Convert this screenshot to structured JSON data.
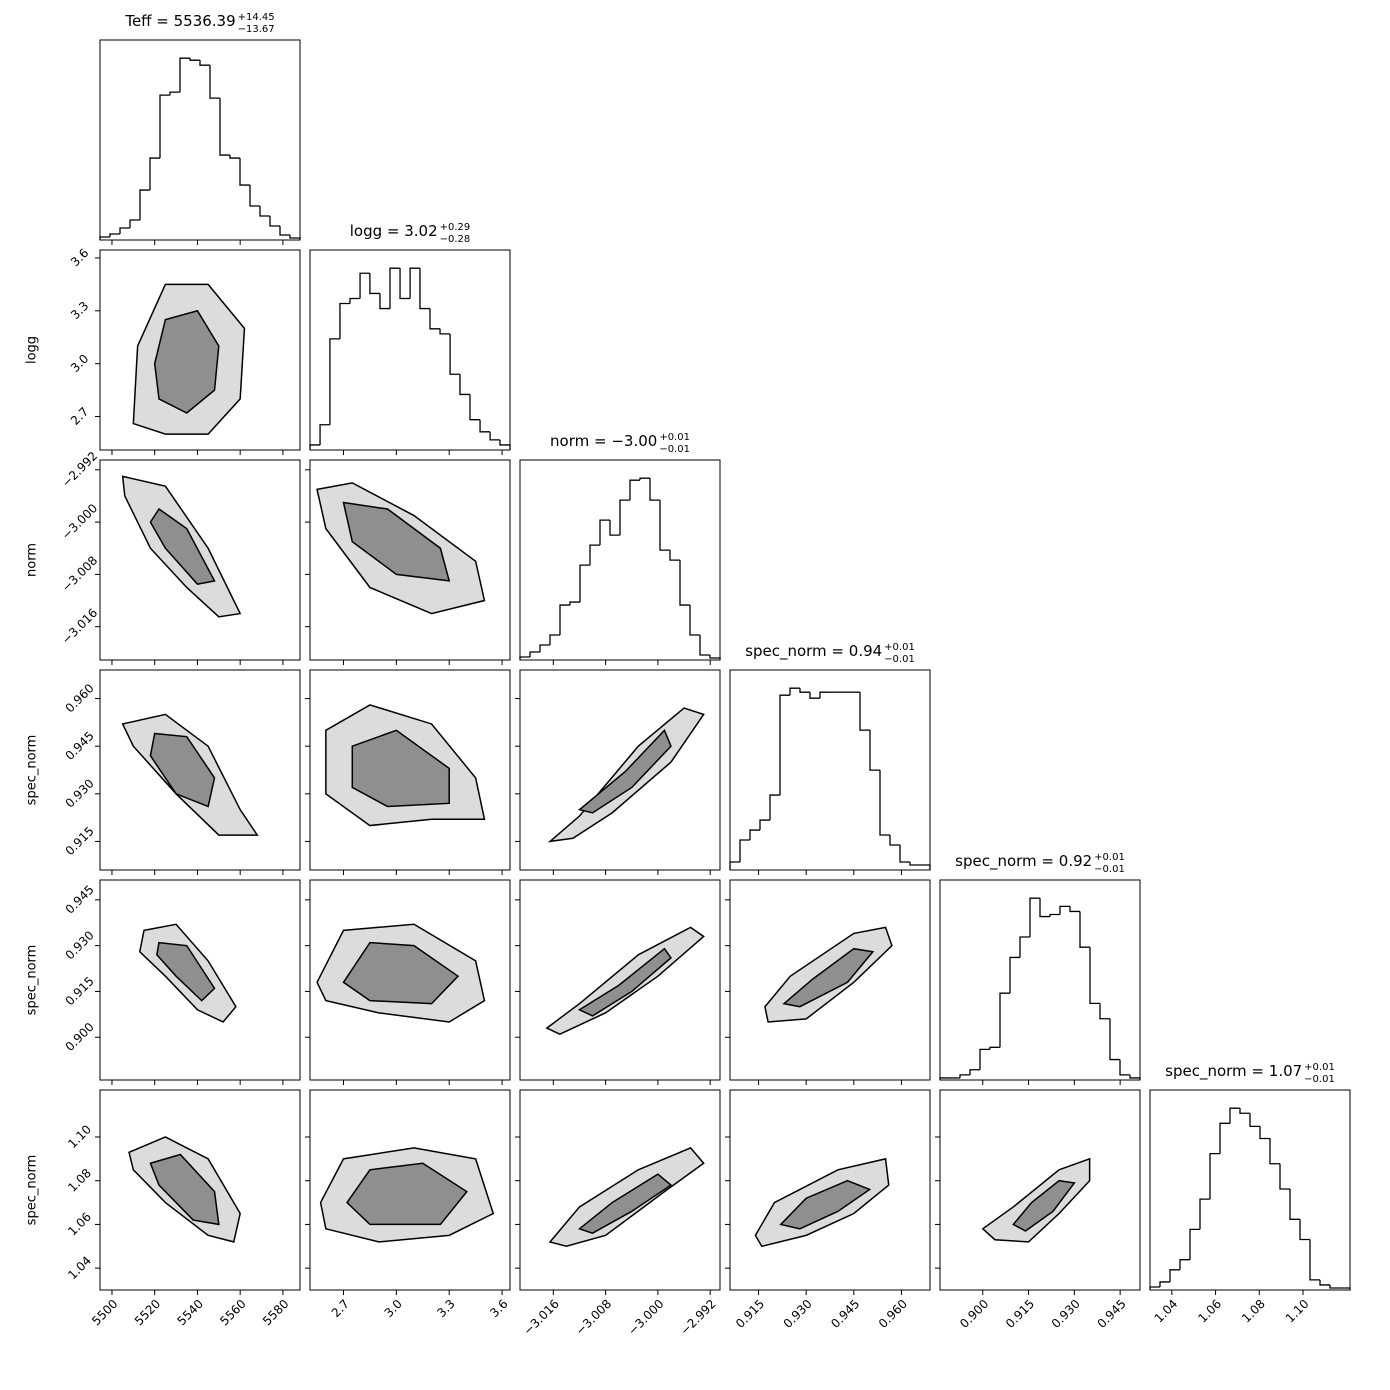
{
  "chart_data": {
    "type": "corner",
    "parameters": [
      {
        "label": "Teff",
        "title": "Teff = 5536.39",
        "upper": "+14.45",
        "lower": "−13.67",
        "lim": [
          5494.4,
          5588
        ],
        "ticks": [
          5500,
          5520,
          5540,
          5560,
          5580
        ],
        "bins": [
          5494.4,
          5499.08,
          5503.76,
          5508.44,
          5513.12,
          5517.8,
          5522.48,
          5527.16,
          5531.84,
          5536.52,
          5541.2,
          5545.88,
          5550.56,
          5555.24,
          5559.92,
          5564.6,
          5569.28,
          5573.96,
          5578.64,
          5583.32,
          5588.0
        ],
        "counts": [
          3,
          6,
          12,
          20,
          50,
          82,
          145,
          148,
          182,
          180,
          175,
          142,
          85,
          82,
          55,
          34,
          24,
          14,
          5,
          2
        ],
        "joint": []
      },
      {
        "label": "logg",
        "title": "logg = 3.02",
        "upper": "+0.29",
        "lower": "−0.28",
        "lim": [
          2.51,
          3.645
        ],
        "ticks": [
          2.7,
          {
            "value": 3.0,
            "label": "3.0"
          },
          3.3,
          3.6
        ],
        "bins": [
          2.51,
          2.567,
          2.623,
          2.68,
          2.737,
          2.794,
          2.85,
          2.907,
          2.964,
          3.021,
          3.078,
          3.134,
          3.191,
          3.248,
          3.305,
          3.361,
          3.418,
          3.475,
          3.532,
          3.588,
          3.645
        ],
        "counts": [
          5,
          25,
          110,
          145,
          150,
          175,
          155,
          140,
          180,
          150,
          180,
          140,
          120,
          115,
          75,
          55,
          30,
          18,
          10,
          5
        ],
        "joint": [
          [
            {
              "x": [
                5510,
                5525,
                5545,
                5560,
                5562,
                5545,
                5525,
                5512
              ],
              "y": [
                2.66,
                2.6,
                2.6,
                2.8,
                3.2,
                3.45,
                3.45,
                3.1
              ]
            },
            {
              "x": [
                5522,
                5535,
                5548,
                5550,
                5540,
                5525,
                5520
              ],
              "y": [
                2.8,
                2.72,
                2.85,
                3.1,
                3.3,
                3.25,
                3.0
              ]
            }
          ]
        ]
      },
      {
        "label": "norm",
        "title": "norm = −3.00",
        "upper": "+0.01",
        "lower": "−0.01",
        "lim": [
          -3.0211,
          -2.9905
        ],
        "ticks": [
          {
            "value": -3.016,
            "label": "−3.016"
          },
          {
            "value": -3.008,
            "label": "−3.008"
          },
          {
            "value": -3.0,
            "label": "−3.000"
          },
          {
            "value": -2.992,
            "label": "−2.992"
          }
        ],
        "bins": [
          -3.0211,
          -3.01957,
          -3.01804,
          -3.01651,
          -3.01498,
          -3.01345,
          -3.01192,
          -3.01039,
          -3.00886,
          -3.00733,
          -3.0058,
          -3.00427,
          -3.00274,
          -3.00121,
          -2.99968,
          -2.99815,
          -2.99662,
          -2.99509,
          -2.99356,
          -2.99203,
          -2.9905
        ],
        "counts": [
          3,
          8,
          15,
          25,
          55,
          58,
          95,
          115,
          140,
          125,
          160,
          180,
          182,
          160,
          110,
          100,
          55,
          25,
          5,
          2
        ],
        "joint": [
          [
            {
              "x": [
                5505,
                5525,
                5545,
                5560,
                5550,
                5535,
                5518,
                5506
              ],
              "y": [
                -2.993,
                -2.9945,
                -3.004,
                -3.014,
                -3.0145,
                -3.01,
                -3.004,
                -2.996
              ]
            },
            {
              "x": [
                5522,
                5535,
                5548,
                5540,
                5525,
                5518
              ],
              "y": [
                -2.998,
                -3.001,
                -3.009,
                -3.0095,
                -3.004,
                -3.0
              ]
            }
          ],
          [
            {
              "x": [
                2.55,
                2.75,
                3.1,
                3.45,
                3.5,
                3.2,
                2.85,
                2.6
              ],
              "y": [
                -2.995,
                -2.994,
                -2.999,
                -3.006,
                -3.012,
                -3.014,
                -3.01,
                -3.001
              ]
            },
            {
              "x": [
                2.7,
                2.95,
                3.25,
                3.3,
                3.0,
                2.75
              ],
              "y": [
                -2.997,
                -2.998,
                -3.004,
                -3.009,
                -3.008,
                -3.003
              ]
            }
          ]
        ]
      },
      {
        "label": "spec_norm",
        "title": "spec_norm = 0.94",
        "upper": "+0.01",
        "lower": "−0.01",
        "lim": [
          0.906,
          0.969
        ],
        "ticks": [
          0.915,
          {
            "value": 0.93,
            "label": "0.930"
          },
          0.945,
          {
            "value": 0.96,
            "label": "0.960"
          }
        ],
        "bins": [
          0.906,
          0.90915,
          0.9123,
          0.91545,
          0.9186,
          0.92175,
          0.9249,
          0.92805,
          0.9312,
          0.93435,
          0.9375,
          0.94065,
          0.9438,
          0.94695,
          0.9501,
          0.95325,
          0.9564,
          0.95955,
          0.9627,
          0.96585,
          0.969
        ],
        "counts": [
          8,
          30,
          40,
          50,
          75,
          175,
          182,
          178,
          172,
          178,
          178,
          178,
          178,
          140,
          100,
          35,
          25,
          8,
          5,
          5
        ],
        "joint": [
          [
            {
              "x": [
                5505,
                5525,
                5545,
                5560,
                5568,
                5550,
                5530,
                5510
              ],
              "y": [
                0.952,
                0.955,
                0.945,
                0.925,
                0.917,
                0.917,
                0.93,
                0.945
              ]
            },
            {
              "x": [
                5520,
                5535,
                5548,
                5545,
                5530,
                5518
              ],
              "y": [
                0.949,
                0.948,
                0.935,
                0.926,
                0.93,
                0.942
              ]
            }
          ],
          [
            {
              "x": [
                2.6,
                2.85,
                3.2,
                3.45,
                3.5,
                3.2,
                2.85,
                2.6
              ],
              "y": [
                0.95,
                0.958,
                0.952,
                0.935,
                0.922,
                0.922,
                0.92,
                0.93
              ]
            },
            {
              "x": [
                2.75,
                3.0,
                3.3,
                3.3,
                2.95,
                2.75
              ],
              "y": [
                0.945,
                0.95,
                0.938,
                0.927,
                0.926,
                0.932
              ]
            }
          ],
          [
            {
              "x": [
                -3.0165,
                -3.012,
                -3.003,
                -2.996,
                -2.993,
                -2.998,
                -3.007,
                -3.013
              ],
              "y": [
                0.915,
                0.923,
                0.945,
                0.957,
                0.955,
                0.94,
                0.924,
                0.916
              ]
            },
            {
              "x": [
                -3.012,
                -3.005,
                -2.999,
                -2.998,
                -3.004,
                -3.01
              ],
              "y": [
                0.925,
                0.937,
                0.95,
                0.945,
                0.932,
                0.924
              ]
            }
          ]
        ]
      },
      {
        "label": "spec_norm",
        "title": "spec_norm = 0.92",
        "upper": "+0.01",
        "lower": "−0.01",
        "lim": [
          0.886,
          0.9515
        ],
        "ticks": [
          {
            "value": 0.9,
            "label": "0.900"
          },
          0.915,
          {
            "value": 0.93,
            "label": "0.930"
          },
          0.945
        ],
        "bins": [
          0.886,
          0.889275,
          0.89255,
          0.895825,
          0.8991,
          0.902375,
          0.90565,
          0.908925,
          0.9122,
          0.915475,
          0.91875,
          0.922025,
          0.9253,
          0.928575,
          0.93185,
          0.935125,
          0.9384,
          0.941675,
          0.94495,
          0.948225,
          0.9515
        ],
        "counts": [
          2,
          2,
          5,
          10,
          30,
          32,
          85,
          120,
          140,
          178,
          160,
          162,
          170,
          165,
          130,
          75,
          60,
          20,
          5,
          2
        ],
        "joint": [
          [
            {
              "x": [
                5515,
                5530,
                5545,
                5558,
                5552,
                5540,
                5525,
                5513
              ],
              "y": [
                0.935,
                0.937,
                0.925,
                0.91,
                0.905,
                0.909,
                0.92,
                0.928
              ]
            },
            {
              "x": [
                5522,
                5535,
                5548,
                5542,
                5530,
                5521
              ],
              "y": [
                0.931,
                0.93,
                0.916,
                0.912,
                0.92,
                0.927
              ]
            }
          ],
          [
            {
              "x": [
                2.55,
                2.7,
                3.1,
                3.45,
                3.5,
                3.3,
                2.9,
                2.6
              ],
              "y": [
                0.918,
                0.935,
                0.937,
                0.925,
                0.912,
                0.905,
                0.908,
                0.912
              ]
            },
            {
              "x": [
                2.7,
                2.85,
                3.1,
                3.35,
                3.2,
                2.85
              ],
              "y": [
                0.918,
                0.931,
                0.93,
                0.92,
                0.911,
                0.912
              ]
            }
          ],
          [
            {
              "x": [
                -3.017,
                -3.012,
                -3.003,
                -2.995,
                -2.993,
                -3.0,
                -3.008,
                -3.015
              ],
              "y": [
                0.903,
                0.911,
                0.927,
                0.936,
                0.933,
                0.92,
                0.908,
                0.901
              ]
            },
            {
              "x": [
                -3.012,
                -3.006,
                -2.999,
                -2.998,
                -3.004,
                -3.01
              ],
              "y": [
                0.909,
                0.917,
                0.929,
                0.926,
                0.915,
                0.907
              ]
            }
          ],
          [
            {
              "x": [
                0.917,
                0.925,
                0.945,
                0.955,
                0.957,
                0.945,
                0.93,
                0.918
              ],
              "y": [
                0.91,
                0.92,
                0.934,
                0.936,
                0.93,
                0.918,
                0.906,
                0.905
              ]
            },
            {
              "x": [
                0.923,
                0.932,
                0.945,
                0.951,
                0.943,
                0.928
              ],
              "y": [
                0.911,
                0.919,
                0.929,
                0.928,
                0.918,
                0.91
              ]
            }
          ]
        ]
      },
      {
        "label": "spec_norm",
        "title": "spec_norm = 1.07",
        "upper": "+0.01",
        "lower": "−0.01",
        "lim": [
          1.03,
          1.1215
        ],
        "ticks": [
          1.04,
          1.06,
          1.08,
          {
            "value": 1.1,
            "label": "1.10"
          }
        ],
        "bins": [
          1.03,
          1.034575,
          1.03915,
          1.043725,
          1.0483,
          1.052875,
          1.05745,
          1.062025,
          1.0666,
          1.071175,
          1.07575,
          1.080325,
          1.0849,
          1.089475,
          1.09405,
          1.098625,
          1.1032,
          1.107775,
          1.11235,
          1.116925,
          1.1215
        ],
        "counts": [
          3,
          8,
          20,
          30,
          60,
          90,
          135,
          165,
          180,
          175,
          162,
          150,
          125,
          100,
          70,
          50,
          10,
          5,
          2,
          2
        ],
        "joint": [
          [
            {
              "x": [
                5508,
                5525,
                5545,
                5560,
                5557,
                5545,
                5525,
                5510
              ],
              "y": [
                1.093,
                1.1,
                1.09,
                1.065,
                1.052,
                1.055,
                1.07,
                1.085
              ]
            },
            {
              "x": [
                5518,
                5532,
                5548,
                5550,
                5538,
                5522
              ],
              "y": [
                1.088,
                1.092,
                1.075,
                1.06,
                1.062,
                1.078
              ]
            }
          ],
          [
            {
              "x": [
                2.57,
                2.7,
                3.1,
                3.45,
                3.55,
                3.3,
                2.9,
                2.6
              ],
              "y": [
                1.07,
                1.09,
                1.095,
                1.09,
                1.065,
                1.055,
                1.052,
                1.058
              ]
            },
            {
              "x": [
                2.72,
                2.85,
                3.15,
                3.4,
                3.25,
                2.85
              ],
              "y": [
                1.07,
                1.085,
                1.088,
                1.075,
                1.06,
                1.06
              ]
            }
          ],
          [
            {
              "x": [
                -3.0165,
                -3.012,
                -3.003,
                -2.995,
                -2.993,
                -2.999,
                -3.008,
                -3.014
              ],
              "y": [
                1.052,
                1.068,
                1.085,
                1.095,
                1.088,
                1.075,
                1.055,
                1.05
              ]
            },
            {
              "x": [
                -3.012,
                -3.007,
                -3.0,
                -2.998,
                -3.004,
                -3.01
              ],
              "y": [
                1.058,
                1.07,
                1.083,
                1.078,
                1.066,
                1.056
              ]
            }
          ],
          [
            {
              "x": [
                0.914,
                0.92,
                0.94,
                0.955,
                0.956,
                0.945,
                0.93,
                0.916
              ],
              "y": [
                1.055,
                1.07,
                1.085,
                1.09,
                1.078,
                1.065,
                1.055,
                1.05
              ]
            },
            {
              "x": [
                0.922,
                0.93,
                0.943,
                0.95,
                0.94,
                0.928
              ],
              "y": [
                1.06,
                1.072,
                1.08,
                1.076,
                1.066,
                1.058
              ]
            }
          ],
          [
            {
              "x": [
                0.9,
                0.91,
                0.925,
                0.935,
                0.935,
                0.925,
                0.915,
                0.904
              ],
              "y": [
                1.058,
                1.068,
                1.085,
                1.09,
                1.08,
                1.065,
                1.052,
                1.053
              ]
            },
            {
              "x": [
                0.91,
                0.916,
                0.925,
                0.93,
                0.923,
                0.914
              ],
              "y": [
                1.06,
                1.07,
                1.08,
                1.079,
                1.066,
                1.057
              ]
            }
          ]
        ]
      }
    ]
  }
}
